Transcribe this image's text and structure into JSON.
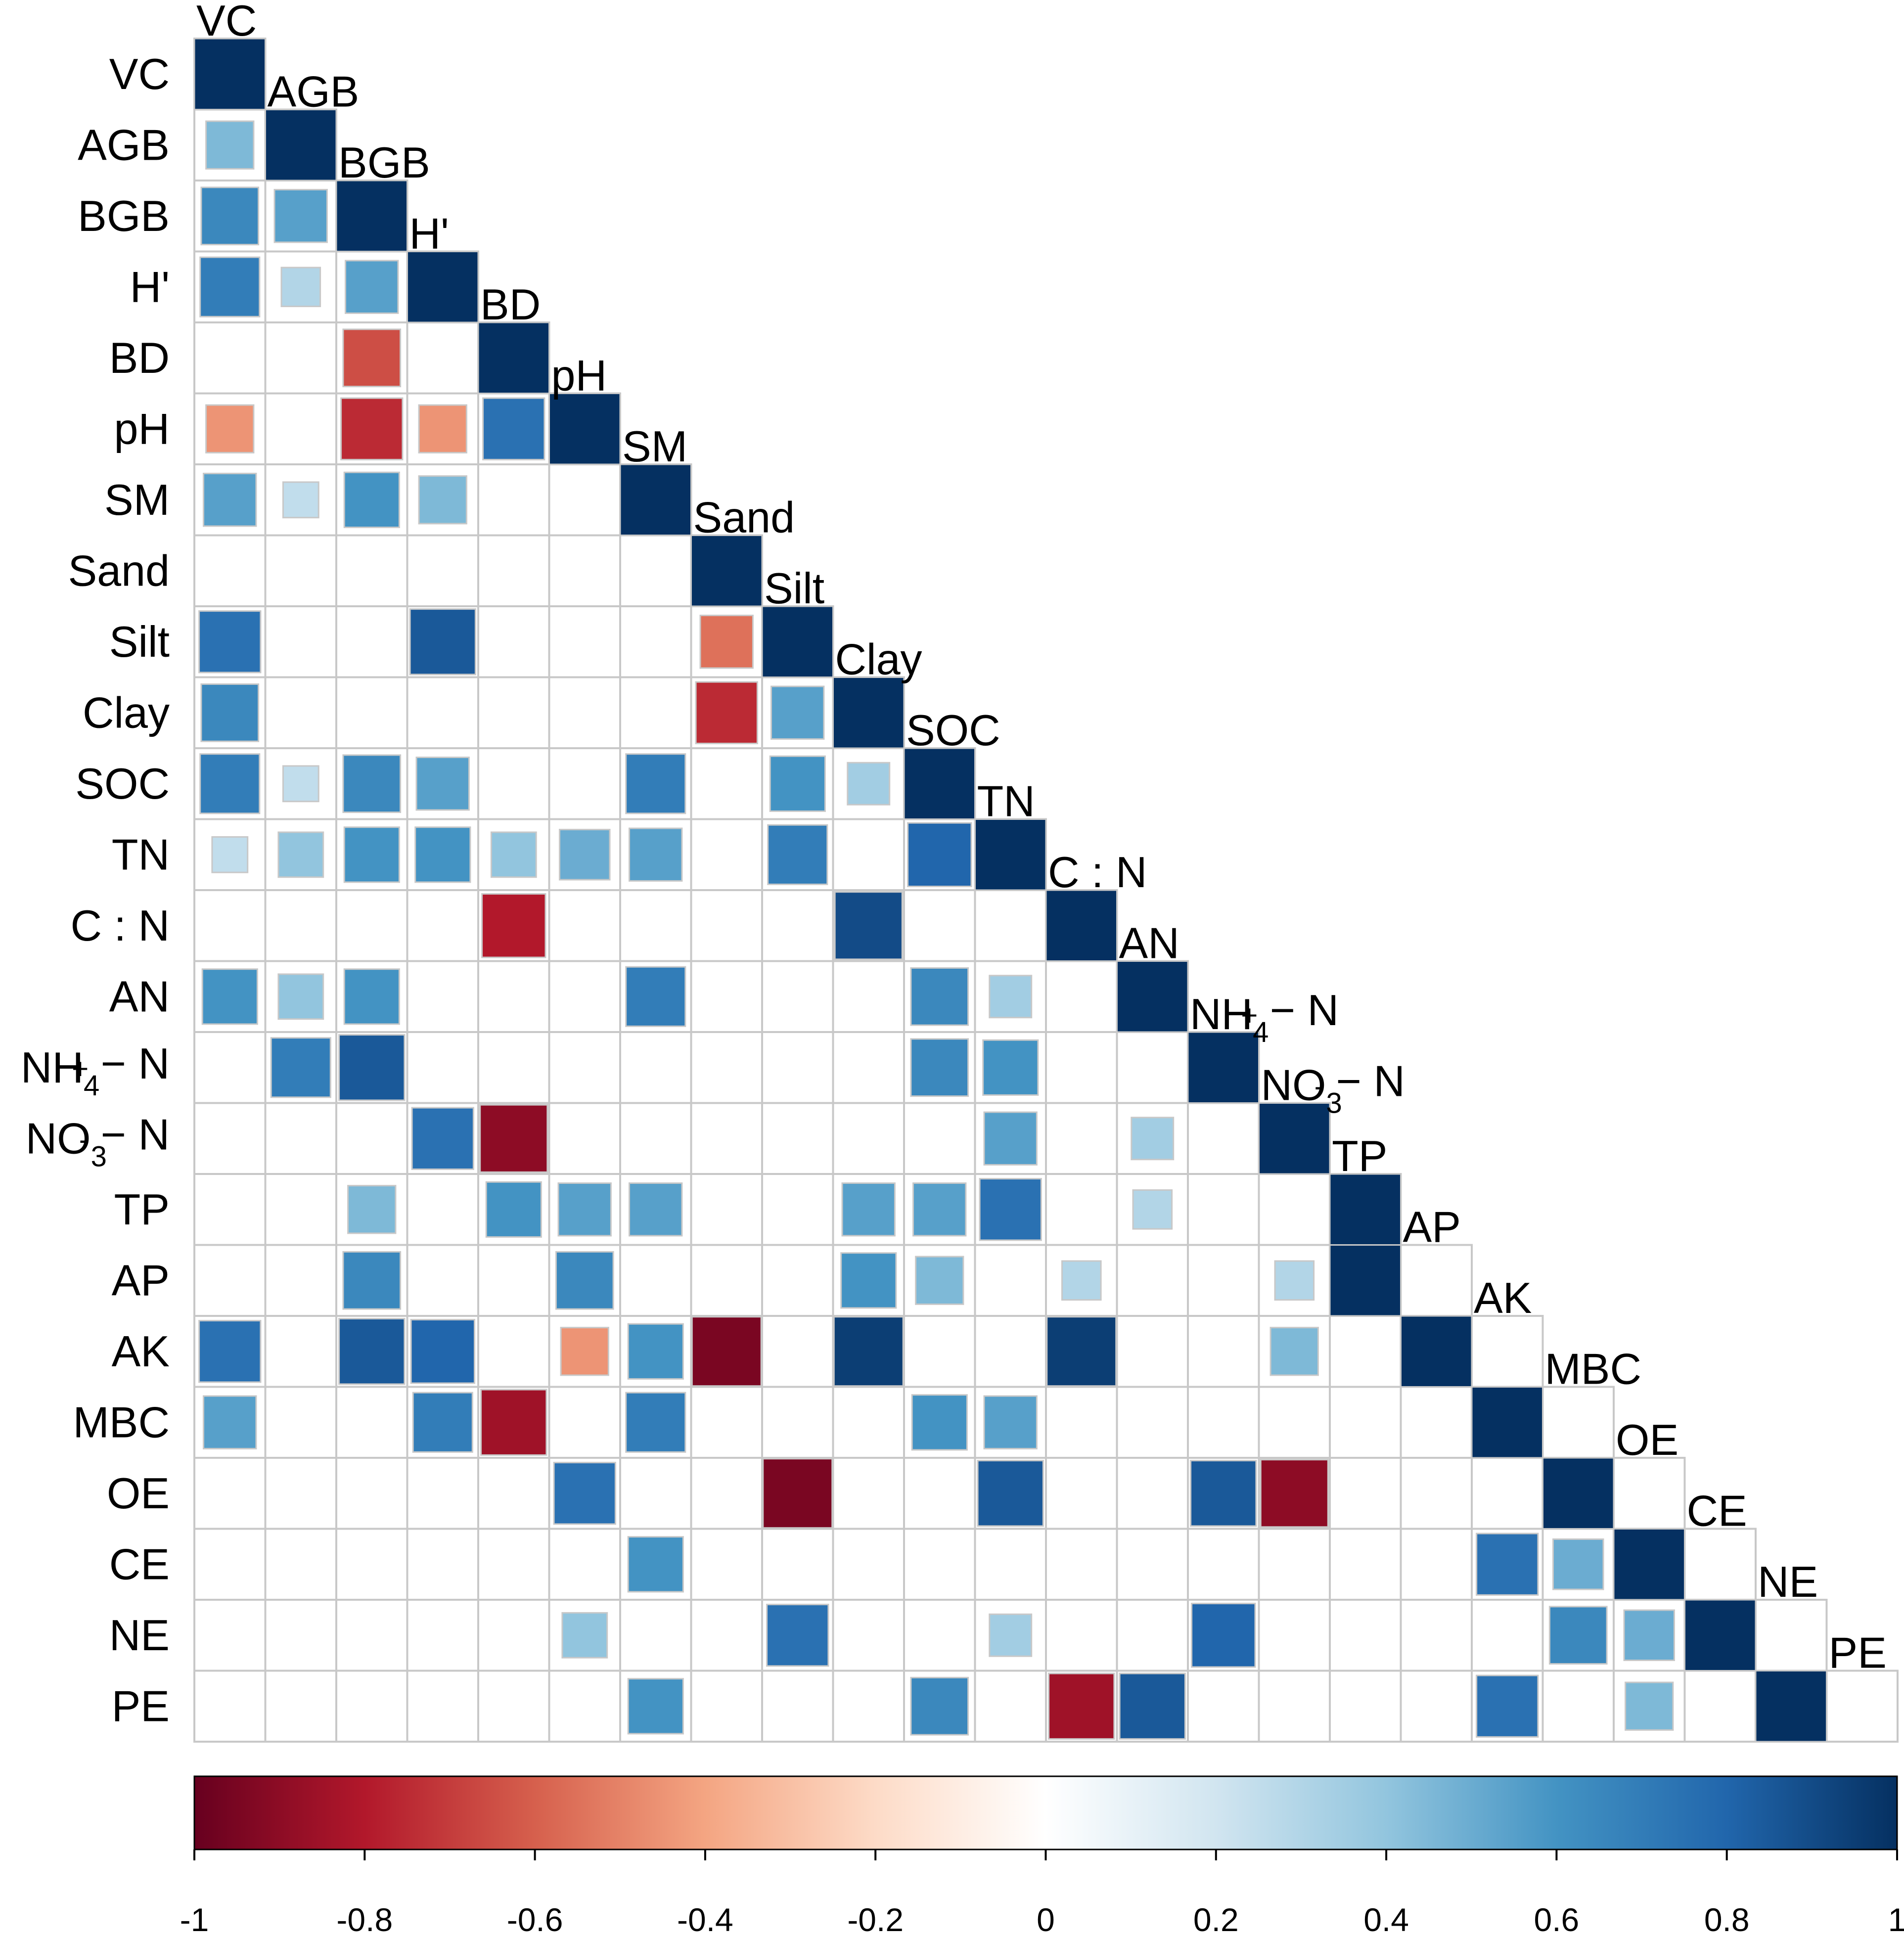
{
  "chart_data": {
    "type": "heatmap",
    "title": "",
    "shape": "square",
    "layout": "lower-triangular",
    "variables": [
      {
        "name": "VC"
      },
      {
        "name": "AGB"
      },
      {
        "name": "BGB"
      },
      {
        "name": "H'"
      },
      {
        "name": "BD"
      },
      {
        "name": "pH"
      },
      {
        "name": "SM"
      },
      {
        "name": "Sand"
      },
      {
        "name": "Silt"
      },
      {
        "name": "Clay"
      },
      {
        "name": "SOC"
      },
      {
        "name": "TN"
      },
      {
        "name": "C : N"
      },
      {
        "name": "AN"
      },
      {
        "name": "NH4+ − N",
        "parts": [
          {
            "t": "NH"
          },
          {
            "t": "4",
            "sub": "+"
          },
          {
            "t": " − N"
          }
        ]
      },
      {
        "name": "NO3- − N",
        "parts": [
          {
            "t": "NO"
          },
          {
            "t": "3",
            "sub": "-"
          },
          {
            "t": " − N"
          }
        ]
      },
      {
        "name": "TP"
      },
      {
        "name": "AP"
      },
      {
        "name": "AK"
      },
      {
        "name": "MBC"
      },
      {
        "name": "OE"
      },
      {
        "name": "CE"
      },
      {
        "name": "NE"
      },
      {
        "name": "PE"
      }
    ],
    "correlations": [
      [
        1
      ],
      [
        0.45,
        1
      ],
      [
        0.65,
        0.55,
        1
      ],
      [
        0.7,
        0.3,
        0.55,
        1
      ],
      [
        null,
        null,
        -0.65,
        null,
        1
      ],
      [
        -0.45,
        null,
        -0.75,
        -0.45,
        0.75,
        1
      ],
      [
        0.55,
        0.25,
        0.6,
        0.45,
        null,
        null,
        1
      ],
      [
        null,
        null,
        null,
        null,
        null,
        null,
        null,
        1
      ],
      [
        0.75,
        null,
        null,
        0.85,
        null,
        null,
        null,
        -0.55,
        1
      ],
      [
        0.65,
        null,
        null,
        null,
        null,
        null,
        null,
        -0.75,
        0.55,
        1
      ],
      [
        0.7,
        0.25,
        0.65,
        0.55,
        null,
        null,
        0.7,
        null,
        0.6,
        0.35,
        1
      ],
      [
        0.25,
        0.4,
        0.6,
        0.6,
        0.4,
        0.5,
        0.55,
        null,
        0.7,
        null,
        0.8,
        1
      ],
      [
        null,
        null,
        null,
        null,
        -0.8,
        null,
        null,
        null,
        null,
        0.9,
        null,
        null,
        1
      ],
      [
        0.6,
        0.4,
        0.6,
        null,
        null,
        null,
        0.7,
        null,
        null,
        null,
        0.65,
        0.35,
        null,
        1
      ],
      [
        null,
        0.7,
        0.85,
        null,
        null,
        null,
        null,
        null,
        null,
        null,
        0.65,
        0.6,
        null,
        null,
        1
      ],
      [
        null,
        null,
        null,
        0.75,
        -0.9,
        null,
        null,
        null,
        null,
        null,
        null,
        0.55,
        null,
        0.35,
        null,
        1
      ],
      [
        null,
        null,
        0.45,
        null,
        0.6,
        0.55,
        0.55,
        null,
        null,
        0.55,
        0.55,
        0.75,
        null,
        0.3,
        null,
        null,
        1
      ],
      [
        null,
        null,
        0.65,
        null,
        null,
        0.65,
        null,
        null,
        null,
        0.6,
        0.45,
        null,
        0.3,
        null,
        null,
        0.3,
        1
      ],
      [
        0.75,
        null,
        0.85,
        0.8,
        null,
        -0.45,
        0.6,
        -0.95,
        null,
        0.95,
        null,
        null,
        0.95,
        null,
        null,
        0.45,
        null,
        1
      ],
      [
        0.55,
        null,
        null,
        0.7,
        -0.85,
        null,
        0.7,
        null,
        null,
        null,
        0.6,
        0.55,
        null,
        null,
        null,
        null,
        null,
        null,
        1
      ],
      [
        null,
        null,
        null,
        null,
        null,
        0.75,
        null,
        null,
        -0.95,
        null,
        null,
        0.85,
        null,
        null,
        0.85,
        -0.9,
        null,
        null,
        null,
        1
      ],
      [
        null,
        null,
        null,
        null,
        null,
        null,
        0.6,
        null,
        null,
        null,
        null,
        null,
        null,
        null,
        null,
        null,
        null,
        null,
        0.75,
        0.5,
        1
      ],
      [
        null,
        null,
        null,
        null,
        null,
        0.4,
        null,
        null,
        0.75,
        null,
        null,
        0.35,
        null,
        null,
        0.8,
        null,
        null,
        null,
        null,
        0.65,
        0.5,
        1
      ],
      [
        null,
        null,
        null,
        null,
        null,
        null,
        0.6,
        null,
        null,
        null,
        0.65,
        null,
        -0.85,
        0.85,
        null,
        null,
        null,
        null,
        0.75,
        null,
        0.45,
        null,
        1
      ]
    ],
    "colorbar": {
      "range": [
        -1,
        1
      ],
      "ticks": [
        -1,
        -0.8,
        -0.6,
        -0.4,
        -0.2,
        0,
        0.2,
        0.4,
        0.6,
        0.8,
        1
      ],
      "tick_labels": [
        "-1",
        "-0.8",
        "-0.6",
        "-0.4",
        "-0.2",
        "0",
        "0.2",
        "0.4",
        "0.6",
        "0.8",
        "1"
      ],
      "colors": [
        "#67001F",
        "#B2182B",
        "#D6604D",
        "#F4A582",
        "#FDDBC7",
        "#FFFFFF",
        "#D1E5F0",
        "#92C5DE",
        "#4393C3",
        "#2166AC",
        "#053061"
      ]
    }
  }
}
